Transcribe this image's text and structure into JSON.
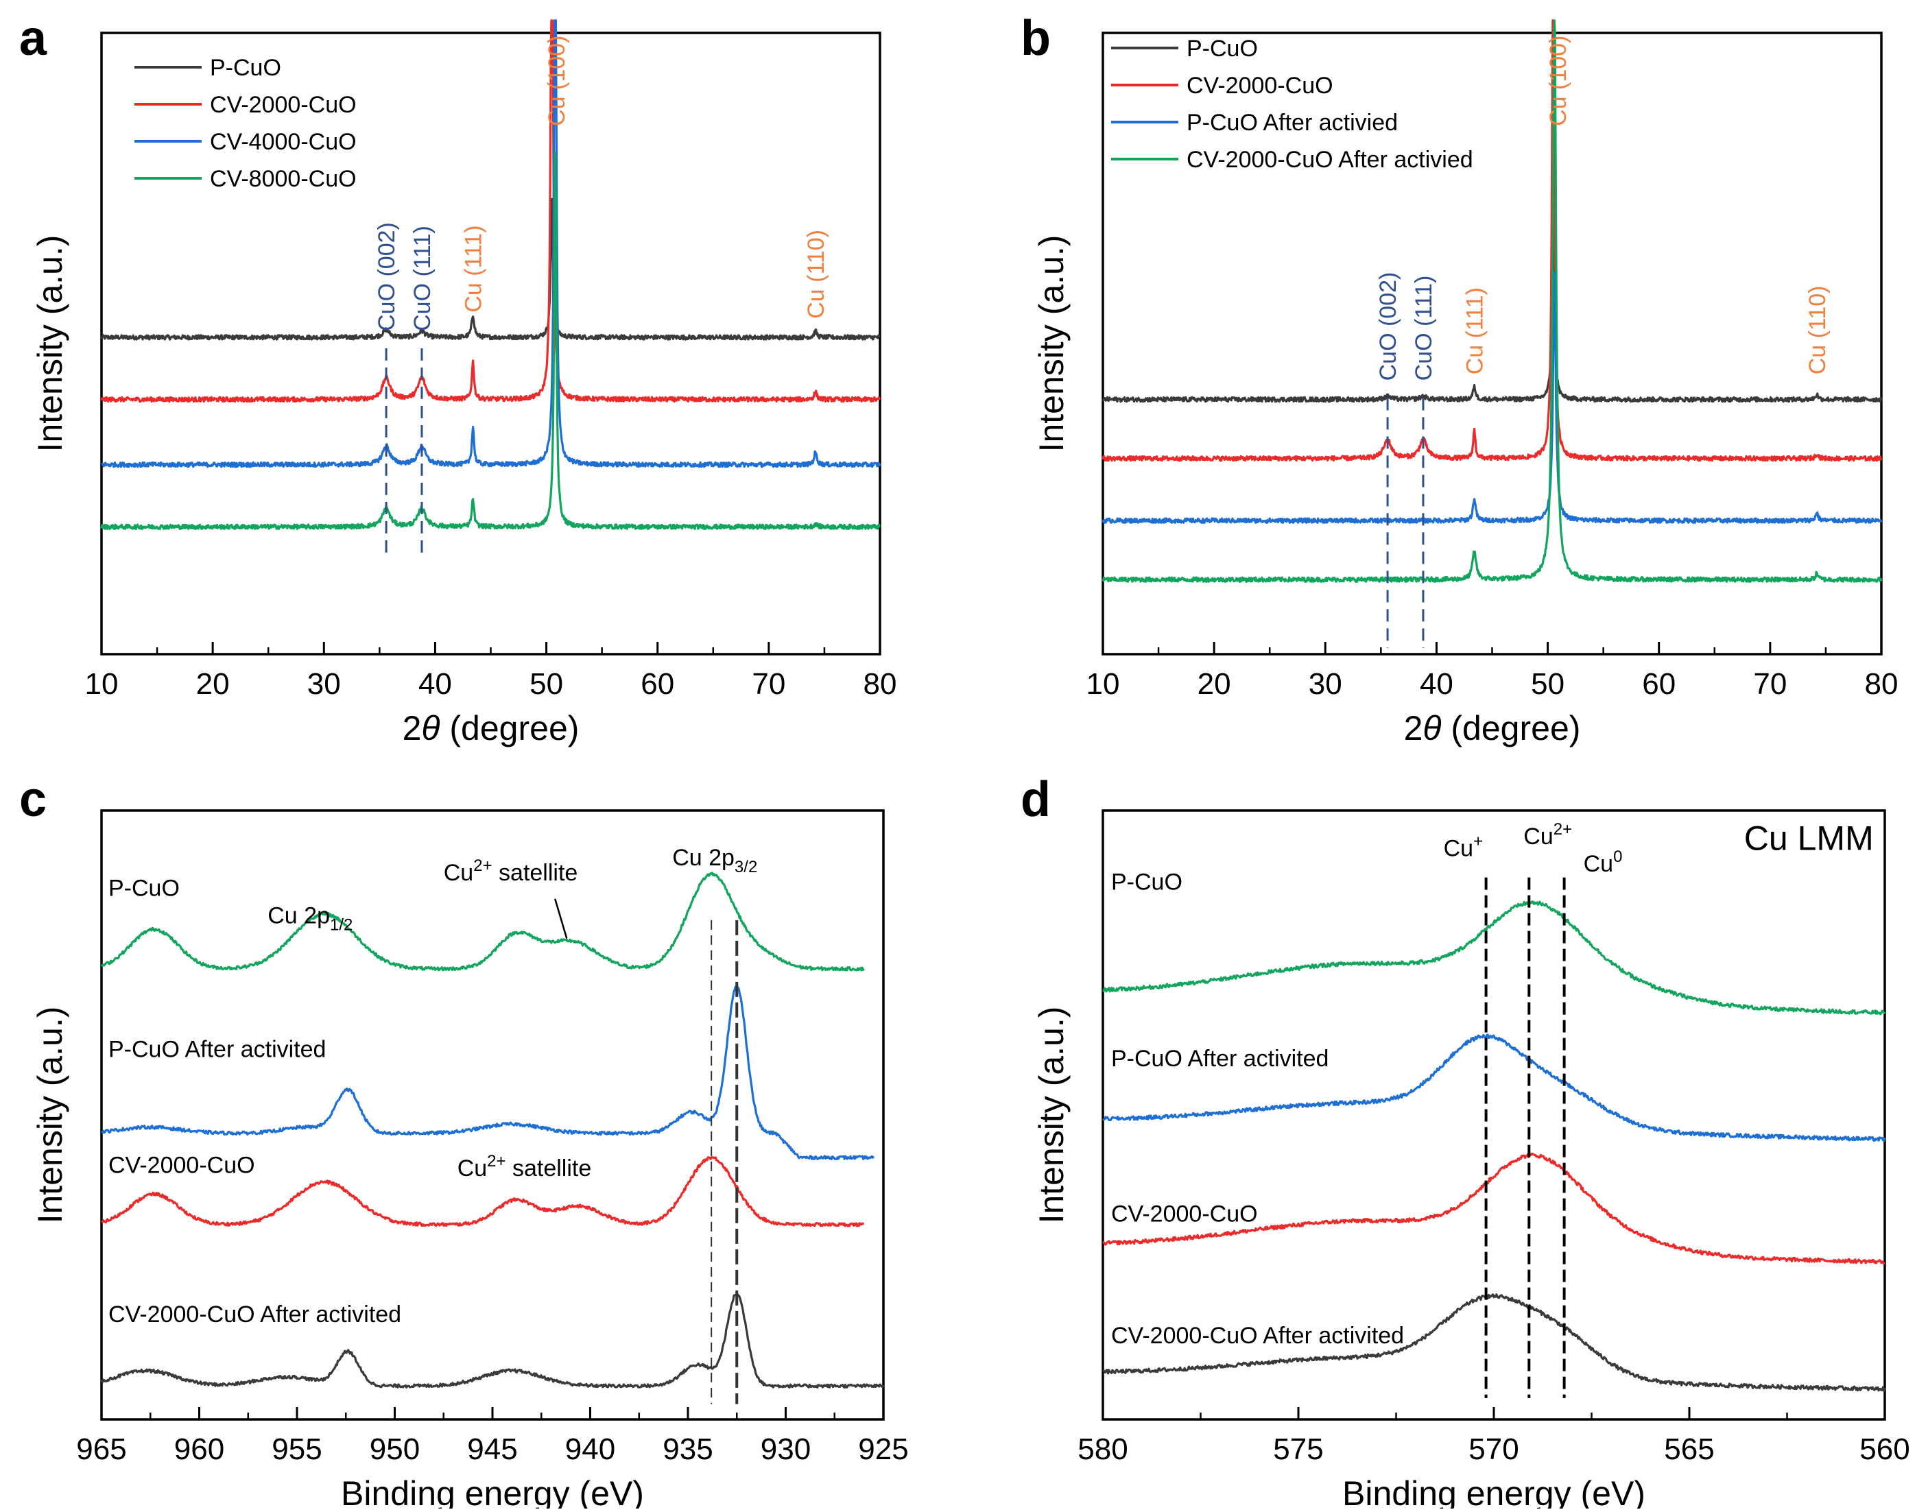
{
  "colors": {
    "black": "#3a3a3a",
    "red": "#ec2a2a",
    "blue": "#1d6fd6",
    "green": "#12a55d",
    "cuo_label": "#2f4f8f",
    "cu_label": "#f08040",
    "dash": "#333333"
  },
  "chart_data": [
    {
      "panel": "a",
      "type": "line",
      "xlabel_pre": "2",
      "xlabel_theta": "θ",
      "xlabel_post": " (degree)",
      "ylabel": "Intensity (a.u.)",
      "xlim": [
        10,
        80
      ],
      "ylim": [
        0,
        10
      ],
      "xticks": [
        "10",
        "20",
        "30",
        "40",
        "50",
        "60",
        "70",
        "80"
      ],
      "legend": [
        "P-CuO",
        "CV-2000-CuO",
        "CV-4000-CuO",
        "CV-8000-CuO"
      ],
      "series": [
        {
          "name": "P-CuO",
          "color": "black",
          "baseline": 5.1,
          "peaks": [
            [
              35.6,
              0.12,
              0.35
            ],
            [
              38.8,
              0.1,
              0.35
            ],
            [
              43.4,
              0.35,
              0.15
            ],
            [
              50.5,
              2.2,
              0.12
            ],
            [
              74.2,
              0.1,
              0.15
            ]
          ],
          "cut_at": 50.5
        },
        {
          "name": "CV-2000-CuO",
          "color": "red",
          "baseline": 4.1,
          "peaks": [
            [
              35.6,
              0.35,
              0.4
            ],
            [
              38.8,
              0.35,
              0.4
            ],
            [
              43.4,
              0.6,
              0.12
            ],
            [
              50.5,
              9.0,
              0.12
            ],
            [
              74.2,
              0.12,
              0.15
            ]
          ],
          "cut_at": 50.5
        },
        {
          "name": "CV-4000-CuO",
          "color": "blue",
          "baseline": 3.05,
          "peaks": [
            [
              35.6,
              0.3,
              0.4
            ],
            [
              38.8,
              0.3,
              0.4
            ],
            [
              43.4,
              0.6,
              0.12
            ],
            [
              50.8,
              9.5,
              0.12
            ],
            [
              74.2,
              0.2,
              0.15
            ]
          ],
          "cut_at": 50.8
        },
        {
          "name": "CV-8000-CuO",
          "color": "green",
          "baseline": 2.05,
          "peaks": [
            [
              35.6,
              0.3,
              0.4
            ],
            [
              38.8,
              0.3,
              0.4
            ],
            [
              43.4,
              0.45,
              0.12
            ],
            [
              50.8,
              6.0,
              0.12
            ],
            [
              74.2,
              0.05,
              0.15
            ]
          ],
          "cut_at": 50.8
        }
      ],
      "peak_labels": [
        {
          "text": "CuO (002)",
          "x": 35.6,
          "kind": "cuo",
          "dash_to": 1.6,
          "label_y": 5.2
        },
        {
          "text": "CuO (111)",
          "x": 38.8,
          "kind": "cuo",
          "dash_to": 1.6,
          "label_y": 5.2
        },
        {
          "text": "Cu (111)",
          "x": 43.4,
          "kind": "cu",
          "label_y": 5.5
        },
        {
          "text": "Cu (100)",
          "x": 50.9,
          "kind": "cu",
          "label_y": 8.5
        },
        {
          "text": "Cu (110)",
          "x": 74.2,
          "kind": "cu",
          "label_y": 5.4
        }
      ]
    },
    {
      "panel": "b",
      "type": "line",
      "xlabel_pre": "2",
      "xlabel_theta": "θ",
      "xlabel_post": " (degree)",
      "ylabel": "Intensity (a.u.)",
      "xlim": [
        10,
        80
      ],
      "ylim": [
        0,
        10
      ],
      "xticks": [
        "10",
        "20",
        "30",
        "40",
        "50",
        "60",
        "70",
        "80"
      ],
      "legend": [
        "P-CuO",
        "CV-2000-CuO",
        "P-CuO   After activied",
        "CV-2000-CuO  After activied"
      ],
      "series": [
        {
          "name": "P-CuO",
          "color": "black",
          "baseline": 4.1,
          "peaks": [
            [
              35.6,
              0.05,
              0.35
            ],
            [
              38.8,
              0.05,
              0.35
            ],
            [
              43.4,
              0.2,
              0.15
            ],
            [
              50.5,
              3.4,
              0.12
            ],
            [
              74.2,
              0.08,
              0.15
            ]
          ],
          "cut_at": 50.5
        },
        {
          "name": "CV-2000-CuO",
          "color": "red",
          "baseline": 3.15,
          "peaks": [
            [
              35.6,
              0.3,
              0.4
            ],
            [
              38.8,
              0.3,
              0.4
            ],
            [
              43.4,
              0.45,
              0.12
            ],
            [
              50.5,
              9.5,
              0.12
            ],
            [
              74.2,
              0.08,
              0.15
            ]
          ],
          "cut_at": 50.5
        },
        {
          "name": "P-CuO   After activied",
          "color": "blue",
          "baseline": 2.15,
          "peaks": [
            [
              43.4,
              0.35,
              0.15
            ],
            [
              50.6,
              4.0,
              0.15
            ],
            [
              74.2,
              0.12,
              0.15
            ]
          ],
          "cut_at": 50.6
        },
        {
          "name": "CV-2000-CuO  After activied",
          "color": "green",
          "baseline": 1.2,
          "peaks": [
            [
              43.4,
              0.45,
              0.2
            ],
            [
              50.6,
              9.5,
              0.18
            ],
            [
              74.2,
              0.1,
              0.15
            ]
          ],
          "cut_at": 50.6
        }
      ],
      "peak_labels": [
        {
          "text": "CuO (002)",
          "x": 35.6,
          "kind": "cuo",
          "dash_to": 0.1,
          "label_y": 4.4
        },
        {
          "text": "CuO (111)",
          "x": 38.8,
          "kind": "cuo",
          "dash_to": 0.1,
          "label_y": 4.4
        },
        {
          "text": "Cu (111)",
          "x": 43.4,
          "kind": "cu",
          "label_y": 4.5
        },
        {
          "text": "Cu (100)",
          "x": 50.9,
          "kind": "cu",
          "label_y": 8.5
        },
        {
          "text": "Cu (110)",
          "x": 74.2,
          "kind": "cu",
          "label_y": 4.5
        }
      ]
    },
    {
      "panel": "c",
      "type": "line",
      "xlabel": "Binding energy (eV)",
      "ylabel": "Intensity (a.u.)",
      "xlim": [
        965,
        925
      ],
      "ylim": [
        0,
        10
      ],
      "xticks": [
        "965",
        "960",
        "955",
        "950",
        "945",
        "940",
        "935",
        "930",
        "925"
      ],
      "series": [
        {
          "name": "P-CuO",
          "label": "P-CuO",
          "color": "green",
          "baseline": 7.4,
          "x_end": 926,
          "peaks": [
            [
              962.3,
              0.65,
              1.2
            ],
            [
              953.6,
              0.9,
              1.6
            ],
            [
              943.8,
              0.55,
              1.0
            ],
            [
              941.0,
              0.45,
              1.3
            ],
            [
              933.8,
              1.55,
              1.2
            ],
            [
              931.2,
              0.2,
              1.0
            ]
          ]
        },
        {
          "name": "P-CuO  After activited",
          "label": "P-CuO  After activited",
          "color": "blue",
          "baseline": 4.7,
          "x_end": 925.5,
          "tail_drop": 0.4,
          "peaks": [
            [
              962.5,
              0.1,
              1.5
            ],
            [
              952.4,
              0.7,
              0.6
            ],
            [
              954.5,
              0.1,
              1.2
            ],
            [
              944.0,
              0.15,
              1.5
            ],
            [
              934.8,
              0.35,
              0.8
            ],
            [
              932.5,
              2.4,
              0.5
            ]
          ]
        },
        {
          "name": "CV-2000-CuO",
          "label": "CV-2000-CuO",
          "color": "red",
          "baseline": 3.2,
          "x_end": 926,
          "peaks": [
            [
              962.3,
              0.5,
              1.2
            ],
            [
              953.6,
              0.7,
              1.6
            ],
            [
              943.8,
              0.4,
              1.0
            ],
            [
              940.6,
              0.3,
              1.2
            ],
            [
              933.8,
              1.1,
              1.2
            ]
          ]
        },
        {
          "name": "CV-2000-CuO After activited",
          "label": "CV-2000-CuO After activited",
          "color": "black",
          "baseline": 0.55,
          "x_end": 925,
          "peaks": [
            [
              962.7,
              0.25,
              1.5
            ],
            [
              955.5,
              0.15,
              1.5
            ],
            [
              952.4,
              0.55,
              0.55
            ],
            [
              944.0,
              0.25,
              1.5
            ],
            [
              934.5,
              0.35,
              0.8
            ],
            [
              932.5,
              1.5,
              0.5
            ]
          ]
        }
      ],
      "annotations": {
        "cu2p12_main": "Cu 2p",
        "cu2p12_sub": "1/2",
        "cu2p32_main": "Cu 2p",
        "cu2p32_sub": "3/2",
        "sat1_main": "Cu",
        "sat1_sup": "2+",
        "sat1_rest": " satellite",
        "sat2_main": "Cu",
        "sat2_sup": "2+",
        "sat2_rest": " satellite"
      },
      "reference_lines": [
        933.8,
        932.5
      ]
    },
    {
      "panel": "d",
      "type": "line",
      "xlabel": "Binding energy (eV)",
      "ylabel": "Intensity (a.u.)",
      "xlim": [
        580,
        560
      ],
      "ylim": [
        0,
        10
      ],
      "xticks": [
        "580",
        "575",
        "570",
        "565",
        "560"
      ],
      "title": "Cu LMM",
      "series": [
        {
          "name": "P-CuO",
          "label": "P-CuO",
          "color": "green",
          "baseline": 7.0,
          "slope": -0.032,
          "peaks": [
            [
              573.0,
              0.6,
              3.2
            ],
            [
              569.0,
              1.25,
              1.2
            ],
            [
              567.0,
              0.3,
              1.6
            ]
          ]
        },
        {
          "name": "P-CuO  After activited",
          "label": "P-CuO  After activited",
          "color": "blue",
          "baseline": 4.9,
          "slope": -0.03,
          "peaks": [
            [
              573.0,
              0.4,
              3.2
            ],
            [
              570.3,
              1.15,
              1.0
            ],
            [
              568.3,
              0.55,
              1.1
            ]
          ]
        },
        {
          "name": "CV-2000-CuO",
          "label": "CV-2000-CuO",
          "color": "red",
          "baseline": 2.85,
          "slope": -0.026,
          "peaks": [
            [
              573.0,
              0.5,
              3.2
            ],
            [
              569.0,
              1.3,
              1.2
            ],
            [
              567.0,
              0.25,
              1.5
            ]
          ]
        },
        {
          "name": "CV-2000-CuO After activited",
          "label": "CV-2000-CuO After activited",
          "color": "black",
          "baseline": 0.75,
          "slope": -0.025,
          "peaks": [
            [
              573.0,
              0.35,
              3.2
            ],
            [
              570.2,
              1.05,
              1.1
            ],
            [
              568.3,
              0.6,
              1.0
            ]
          ]
        }
      ],
      "ref_labels": [
        {
          "main": "Cu",
          "sup": "+",
          "x": 570.2
        },
        {
          "main": "Cu",
          "sup": "2+",
          "x": 569.1
        },
        {
          "main": "Cu",
          "sup": "0",
          "x": 568.2
        }
      ]
    }
  ]
}
